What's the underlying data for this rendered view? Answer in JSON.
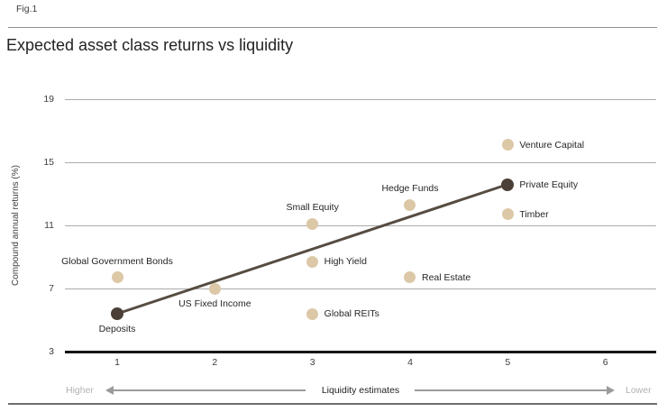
{
  "figure": {
    "fig_label": "Fig.1",
    "title": "Expected asset class returns vs liquidity"
  },
  "chart_data": {
    "type": "scatter",
    "title": "Expected asset class returns vs liquidity",
    "xlabel": "Liquidity estimates",
    "ylabel": "Compound annual returns (%)",
    "x_ticks": [
      1,
      2,
      3,
      4,
      5,
      6
    ],
    "y_ticks": [
      3,
      7,
      11,
      15,
      19
    ],
    "xlim": [
      0.5,
      6.5
    ],
    "ylim": [
      3,
      19
    ],
    "grid": "horizontal",
    "direction_labels": {
      "left": "Higher",
      "right": "Lower"
    },
    "points": [
      {
        "label": "Deposits",
        "x": 1,
        "y": 5.4,
        "series": "highlight",
        "label_position": "below"
      },
      {
        "label": "Global Government Bonds",
        "x": 1,
        "y": 7.7,
        "series": "standard",
        "label_position": "above"
      },
      {
        "label": "US Fixed Income",
        "x": 2,
        "y": 7.0,
        "series": "standard",
        "label_position": "below"
      },
      {
        "label": "Global REITs",
        "x": 3,
        "y": 5.4,
        "series": "standard",
        "label_position": "right"
      },
      {
        "label": "High Yield",
        "x": 3,
        "y": 8.7,
        "series": "standard",
        "label_position": "right"
      },
      {
        "label": "Small Equity",
        "x": 3,
        "y": 11.1,
        "series": "standard",
        "label_position": "above"
      },
      {
        "label": "Real Estate",
        "x": 4,
        "y": 7.7,
        "series": "standard",
        "label_position": "right"
      },
      {
        "label": "Hedge Funds",
        "x": 4,
        "y": 12.3,
        "series": "standard",
        "label_position": "above"
      },
      {
        "label": "Timber",
        "x": 5,
        "y": 11.7,
        "series": "standard",
        "label_position": "right"
      },
      {
        "label": "Private Equity",
        "x": 5,
        "y": 13.6,
        "series": "highlight",
        "label_position": "right"
      },
      {
        "label": "Venture Capital",
        "x": 5,
        "y": 16.1,
        "series": "standard",
        "label_position": "right"
      }
    ],
    "trend_line": {
      "from": "Deposits",
      "to": "Private Equity"
    },
    "colors": {
      "standard_point": "#dcc8a7",
      "highlight_point": "#4a4037",
      "trend_line": "#564c42",
      "gridline": "#ababab",
      "axis_line": "#161616"
    }
  }
}
